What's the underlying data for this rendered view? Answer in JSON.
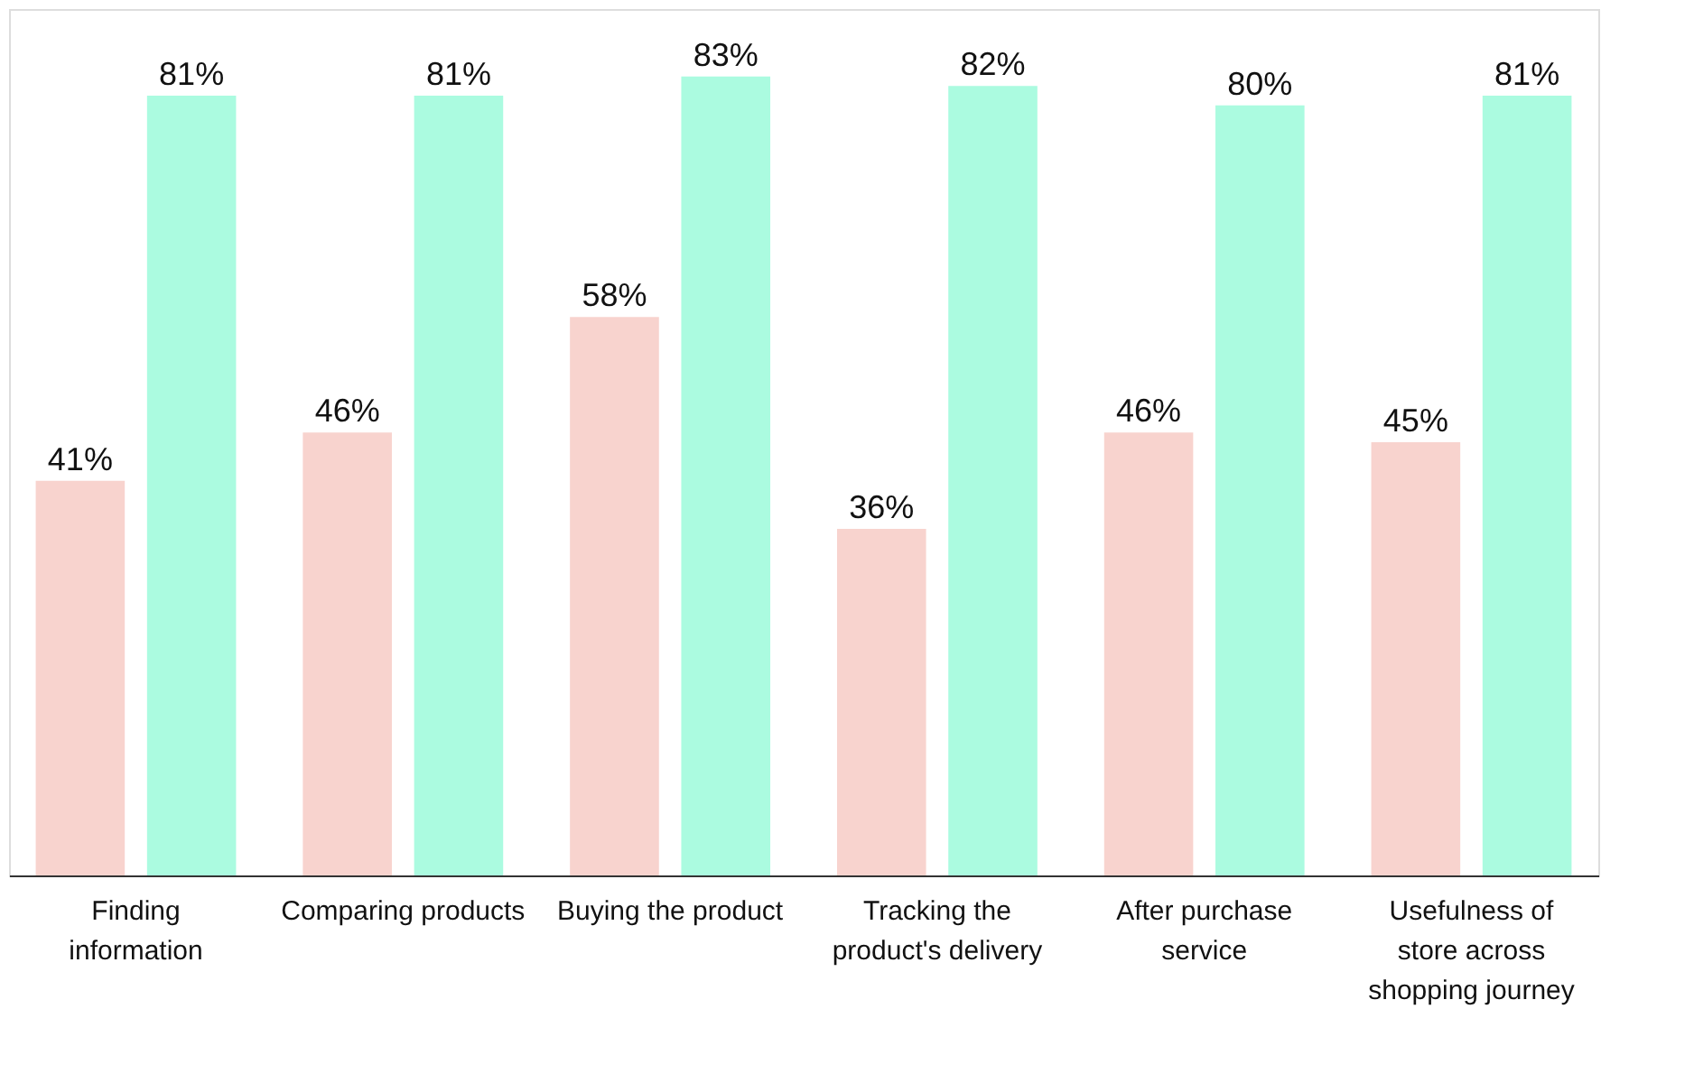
{
  "chart_data": {
    "type": "bar",
    "categories": [
      "Finding information",
      "Comparing products",
      "Buying the product",
      "Tracking the product's delivery",
      "After purchase service",
      "Usefulness of store across shopping journey"
    ],
    "series": [
      {
        "color": "#f8d3ce",
        "values": [
          41,
          46,
          58,
          36,
          46,
          45
        ],
        "value_labels": [
          "41%",
          "46%",
          "58%",
          "36%",
          "46%",
          "45%"
        ]
      },
      {
        "color": "#abfbe0",
        "values": [
          81,
          81,
          83,
          82,
          80,
          81
        ],
        "value_labels": [
          "81%",
          "81%",
          "83%",
          "82%",
          "80%",
          "81%"
        ]
      }
    ],
    "data_labels": true,
    "grid": false,
    "legend": false
  }
}
